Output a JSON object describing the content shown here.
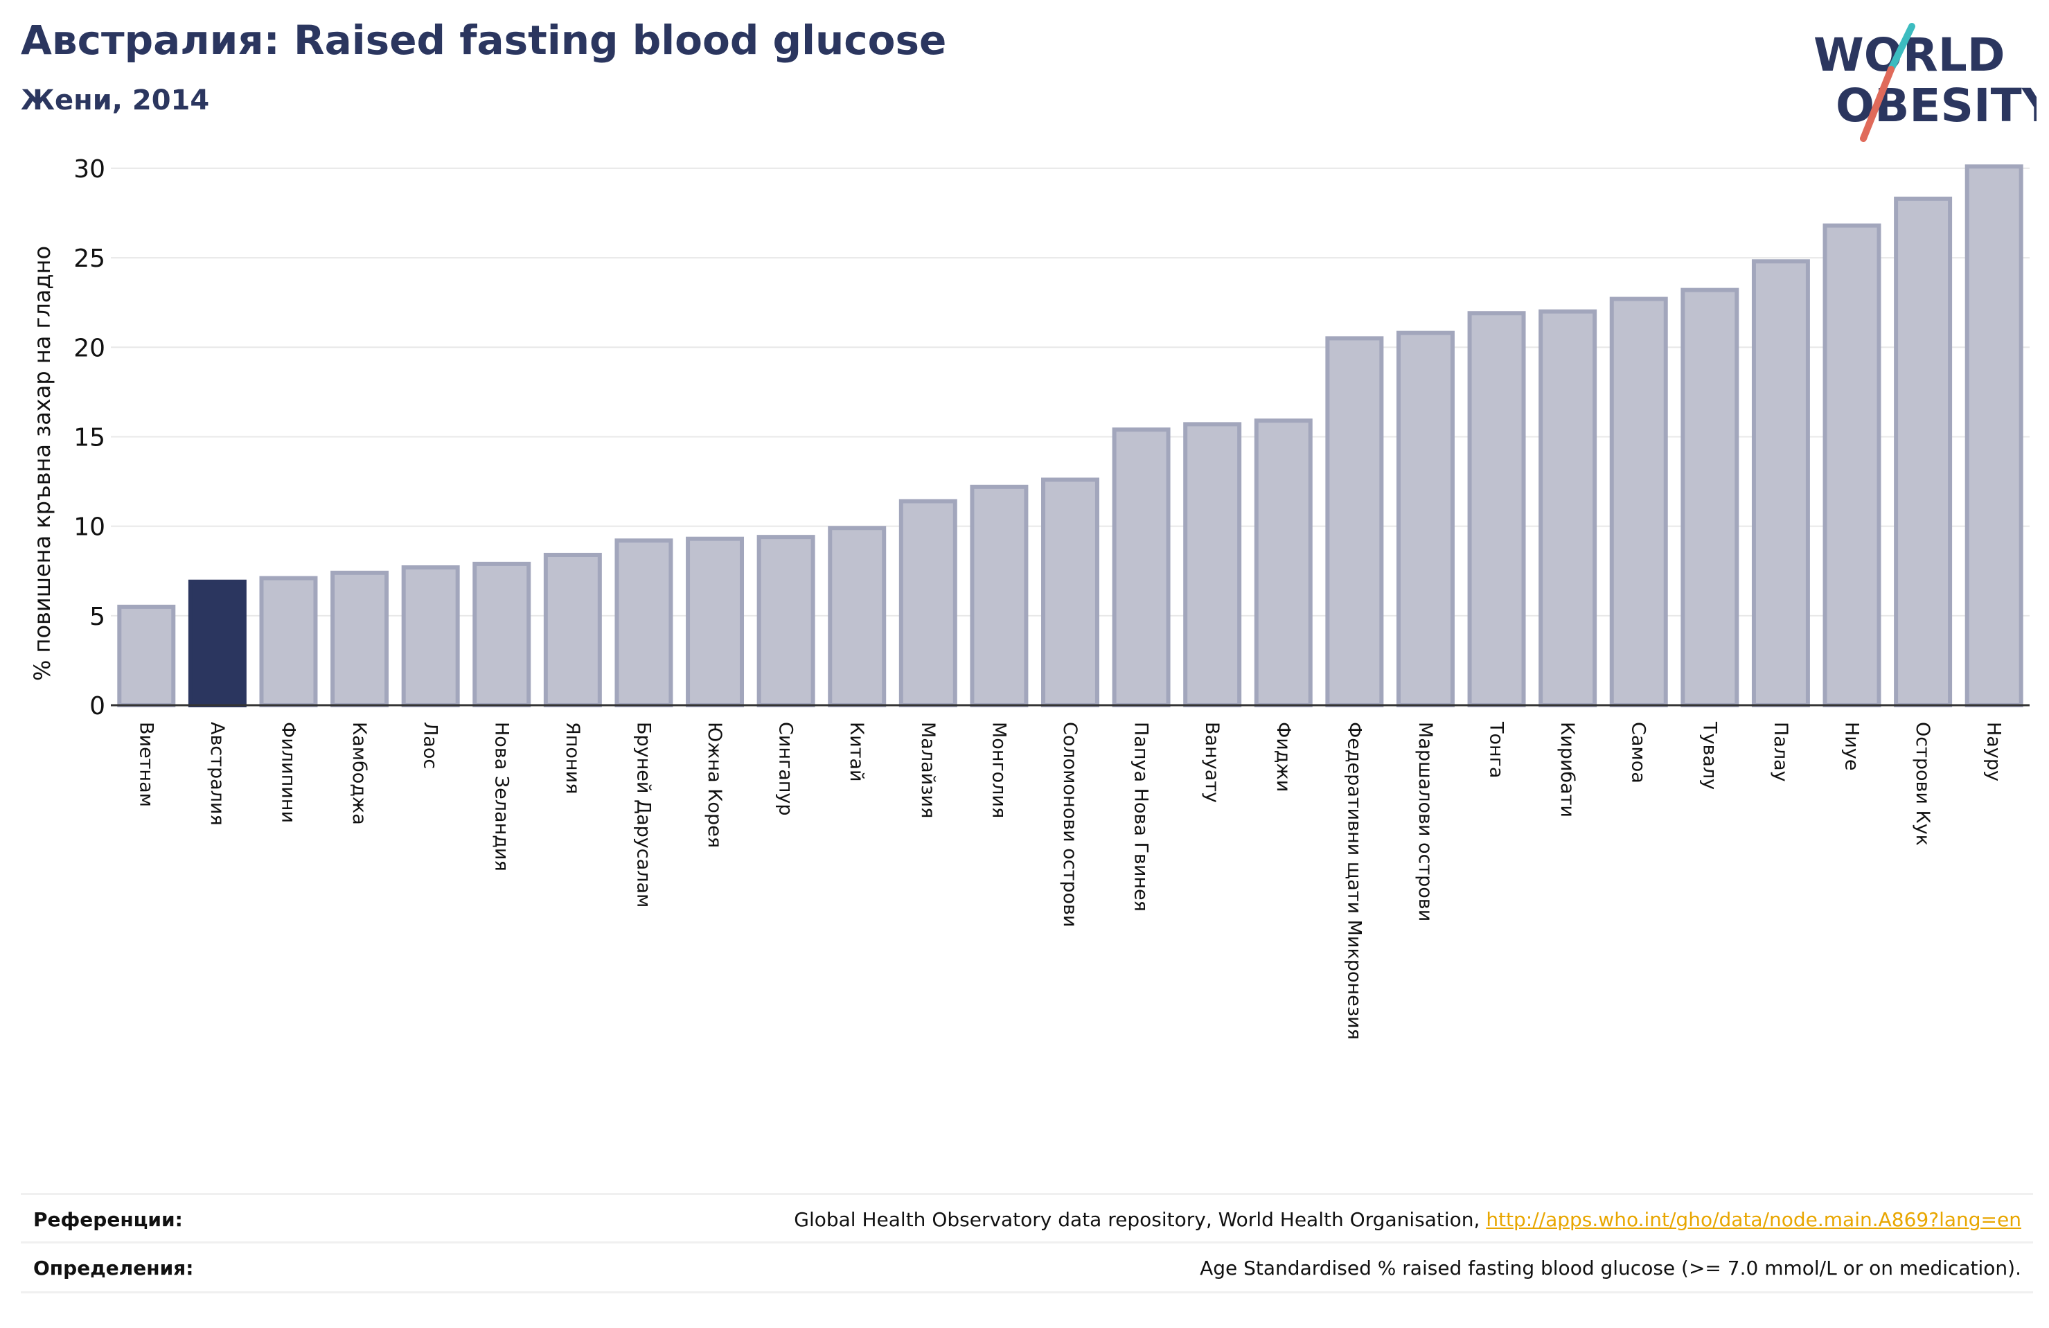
{
  "header": {
    "title": "Австралия: Raised fasting blood glucose",
    "subtitle": "Жени, 2014"
  },
  "logo": {
    "line1": "WORLD",
    "line2": "OBESITY"
  },
  "colors": {
    "highlight": "#2b365f",
    "bar_fill": "#bfc1cf",
    "bar_edge": "#a2a6bc",
    "grid": "#e8e8e8",
    "logo_text": "#2b365f",
    "logo_teal": "#3cbcc0",
    "logo_red": "#e06a5a"
  },
  "chart_data": {
    "type": "bar",
    "ylabel": "% повишена кръвна захар на гладно",
    "ylim": [
      0,
      30.5
    ],
    "yticks": [
      0,
      5,
      10,
      15,
      20,
      25,
      30
    ],
    "grid": true,
    "highlight_category": "Австралия",
    "categories": [
      "Виетнам",
      "Австралия",
      "Филипини",
      "Камбоджа",
      "Лаос",
      "Нова Зеландия",
      "Япония",
      "Бруней Дарусалам",
      "Южна Корея",
      "Сингапур",
      "Китай",
      "Малайзия",
      "Монголия",
      "Соломонови острови",
      "Папуа Нова Гвинея",
      "Вануату",
      "Фиджи",
      "Федеративни щати Микронезия",
      "Маршалови острови",
      "Тонга",
      "Кирибати",
      "Самоа",
      "Тувалу",
      "Палау",
      "Ниуе",
      "Острови Кук",
      "Науру"
    ],
    "values": [
      5.5,
      6.9,
      7.1,
      7.4,
      7.7,
      7.9,
      8.4,
      9.2,
      9.3,
      9.4,
      9.9,
      11.4,
      12.2,
      12.6,
      15.4,
      15.7,
      15.9,
      20.5,
      20.8,
      21.9,
      22.0,
      22.7,
      23.2,
      24.8,
      26.8,
      28.3,
      30.1
    ]
  },
  "footer": {
    "references_label": "Референции:",
    "references_text": "Global Health Observatory data repository, World Health Organisation,",
    "references_link": "http://apps.who.int/gho/data/node.main.A869?lang=en",
    "definitions_label": "Определения:",
    "definitions_text": "Age Standardised % raised fasting blood glucose (>= 7.0 mmol/L or on medication)."
  }
}
